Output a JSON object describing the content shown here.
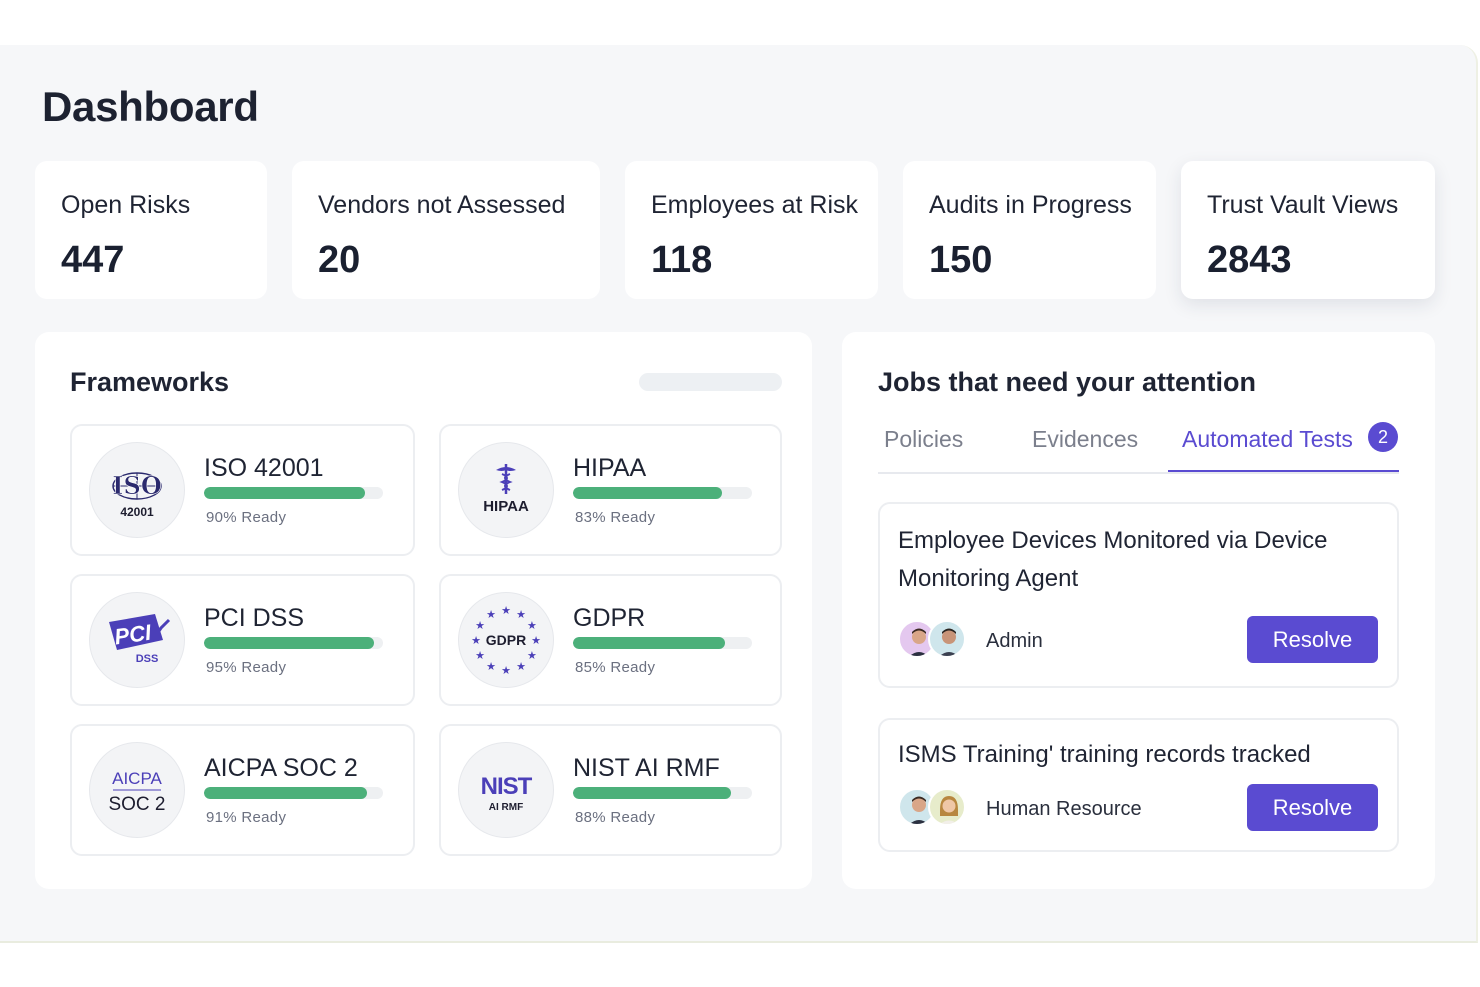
{
  "page": {
    "title": "Dashboard"
  },
  "stats": [
    {
      "label": "Open Risks",
      "value": "447"
    },
    {
      "label": "Vendors not Assessed",
      "value": "20"
    },
    {
      "label": "Employees at Risk",
      "value": "118"
    },
    {
      "label": "Audits in Progress",
      "value": "150"
    },
    {
      "label": "Trust Vault Views",
      "value": "2843"
    }
  ],
  "frameworks": {
    "title": "Frameworks",
    "items": [
      {
        "name": "ISO 42001",
        "ready_text": "90% Ready",
        "progress": 0.9,
        "logo": "ISO",
        "logo_sub": "42001",
        "logo_icon": "iso-logo-icon"
      },
      {
        "name": "HIPAA",
        "ready_text": "83% Ready",
        "progress": 0.83,
        "logo": "HIPAA",
        "logo_icon": "hipaa-caduceus-icon"
      },
      {
        "name": "PCI DSS",
        "ready_text": "95% Ready",
        "progress": 0.95,
        "logo": "PCI",
        "logo_sub": "DSS",
        "logo_icon": "pci-dss-logo-icon"
      },
      {
        "name": "GDPR",
        "ready_text": "85% Ready",
        "progress": 0.85,
        "logo": "GDPR",
        "logo_icon": "gdpr-stars-icon"
      },
      {
        "name": "AICPA SOC 2",
        "ready_text": "91% Ready",
        "progress": 0.91,
        "logo": "AICPA",
        "logo_sub": "SOC 2",
        "logo_icon": "aicpa-logo-icon"
      },
      {
        "name": "NIST AI RMF",
        "ready_text": "88% Ready",
        "progress": 0.88,
        "logo": "NIST",
        "logo_sub": "AI RMF",
        "logo_icon": "nist-logo-icon"
      }
    ]
  },
  "jobs": {
    "title": "Jobs that need your attention",
    "tabs": [
      {
        "label": "Policies",
        "active": false
      },
      {
        "label": "Evidences",
        "active": false
      },
      {
        "label": "Automated Tests",
        "active": true,
        "badge": "2"
      }
    ],
    "items": [
      {
        "title": "Employee Devices Monitored via Device Monitoring Agent",
        "assignee": "Admin",
        "action": "Resolve"
      },
      {
        "title": "ISMS Training' training records tracked",
        "assignee": "Human Resource",
        "action": "Resolve"
      }
    ]
  },
  "colors": {
    "accent": "#5a4bd1",
    "progress": "#4cb07a",
    "background": "#f6f7f9",
    "logo_purple": "#4b3fb8"
  }
}
